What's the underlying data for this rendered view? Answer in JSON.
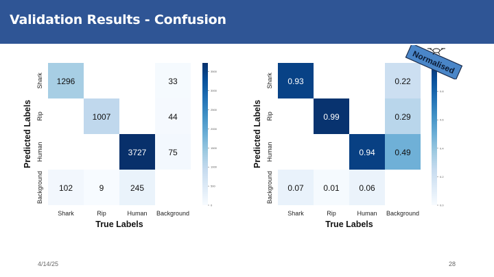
{
  "slide": {
    "title": "Validation Results - Confusion",
    "date": "4/14/25",
    "page_number": "28"
  },
  "badge": {
    "text": "Normalised",
    "icon": "drone-icon"
  },
  "colors": {
    "header": "#2f5595",
    "cmap": [
      "#f7fbff",
      "#deebf7",
      "#c6dbef",
      "#9ecae1",
      "#6baed6",
      "#4292c6",
      "#2171b5",
      "#08519c",
      "#08306b"
    ]
  },
  "chart_data": [
    {
      "type": "heatmap",
      "title": "",
      "xlabel": "True Labels",
      "ylabel": "Predicted Labels",
      "x_categories": [
        "Shark",
        "Rip",
        "Human",
        "Background"
      ],
      "y_categories": [
        "Shark",
        "Rip",
        "Human",
        "Background"
      ],
      "values": [
        [
          1296,
          null,
          null,
          33
        ],
        [
          null,
          1007,
          null,
          44
        ],
        [
          null,
          null,
          3727,
          75
        ],
        [
          102,
          9,
          245,
          null
        ]
      ],
      "labels": [
        [
          "1296",
          "",
          "",
          "33"
        ],
        [
          "",
          "1007",
          "",
          "44"
        ],
        [
          "",
          "",
          "3727",
          "75"
        ],
        [
          "102",
          "9",
          "245",
          ""
        ]
      ],
      "vmin": 0,
      "vmax": 3727,
      "colorbar_ticks": [
        "0",
        "500",
        "1000",
        "1500",
        "2000",
        "2500",
        "3000",
        "3500"
      ]
    },
    {
      "type": "heatmap",
      "title": "",
      "xlabel": "True Labels",
      "ylabel": "Predicted Labels",
      "x_categories": [
        "Shark",
        "Rip",
        "Human",
        "Background"
      ],
      "y_categories": [
        "Shark",
        "Rip",
        "Human",
        "Background"
      ],
      "values": [
        [
          0.93,
          null,
          null,
          0.22
        ],
        [
          null,
          0.99,
          null,
          0.29
        ],
        [
          null,
          null,
          0.94,
          0.49
        ],
        [
          0.07,
          0.01,
          0.06,
          null
        ]
      ],
      "labels": [
        [
          "0.93",
          "",
          "",
          "0.22"
        ],
        [
          "",
          "0.99",
          "",
          "0.29"
        ],
        [
          "",
          "",
          "0.94",
          "0.49"
        ],
        [
          "0.07",
          "0.01",
          "0.06",
          ""
        ]
      ],
      "vmin": 0,
      "vmax": 1,
      "colorbar_ticks": [
        "0.0",
        "0.2",
        "0.4",
        "0.6",
        "0.8"
      ]
    }
  ]
}
